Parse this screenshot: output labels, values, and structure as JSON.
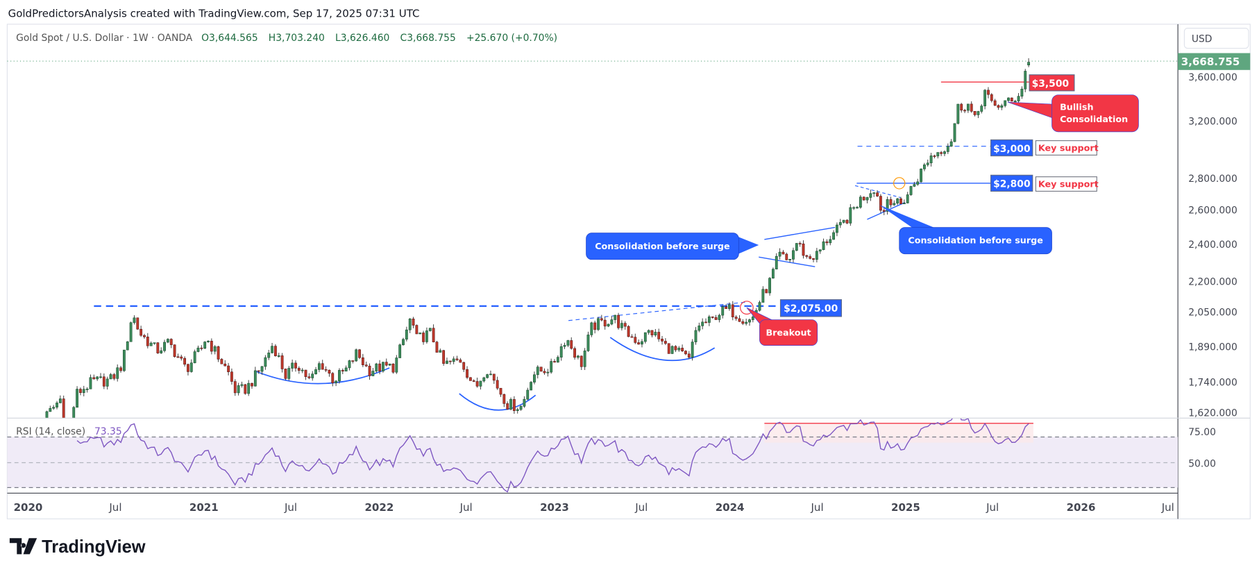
{
  "header": {
    "attribution": "GoldPredictorsAnalysis created with TradingView.com, Sep 17, 2025 07:31 UTC"
  },
  "legend": {
    "symbol": "Gold Spot / U.S. Dollar · 1W · OANDA",
    "open": "O3,644.565",
    "high": "H3,703.240",
    "low": "L3,626.460",
    "close": "C3,668.755",
    "change": "+25.670 (+0.70%)"
  },
  "price_axis": {
    "currency": "USD",
    "scale": "log",
    "ticks": [
      {
        "value": 3600,
        "label": "3,600.000"
      },
      {
        "value": 3200,
        "label": "3,200.000"
      },
      {
        "value": 2800,
        "label": "2,800.000"
      },
      {
        "value": 2600,
        "label": "2,600.000"
      },
      {
        "value": 2400,
        "label": "2,400.000"
      },
      {
        "value": 2200,
        "label": "2,200.000"
      },
      {
        "value": 2050,
        "label": "2,050.000"
      },
      {
        "value": 1890,
        "label": "1,890.000"
      },
      {
        "value": 1740,
        "label": "1,740.000"
      },
      {
        "value": 1620,
        "label": "1,620.000"
      }
    ],
    "last_price": "3,668.755"
  },
  "time_axis": {
    "ticks": [
      {
        "label": "2020",
        "date": "2020-01-01",
        "year": true
      },
      {
        "label": "Jul",
        "date": "2020-07-01"
      },
      {
        "label": "2021",
        "date": "2021-01-01",
        "year": true
      },
      {
        "label": "Jul",
        "date": "2021-07-01"
      },
      {
        "label": "2022",
        "date": "2022-01-01",
        "year": true
      },
      {
        "label": "Jul",
        "date": "2022-07-01"
      },
      {
        "label": "2023",
        "date": "2023-01-01",
        "year": true
      },
      {
        "label": "Jul",
        "date": "2023-07-01"
      },
      {
        "label": "2024",
        "date": "2024-01-01",
        "year": true
      },
      {
        "label": "Jul",
        "date": "2024-07-01"
      },
      {
        "label": "2025",
        "date": "2025-01-01",
        "year": true
      },
      {
        "label": "Jul",
        "date": "2025-07-01"
      },
      {
        "label": "2026",
        "date": "2026-01-01",
        "year": true
      },
      {
        "label": "Jul",
        "date": "2026-07-01"
      }
    ]
  },
  "rsi": {
    "label": "RSI (14, close)",
    "value": "73.35",
    "ticks": [
      {
        "value": 75,
        "label": "75.00"
      },
      {
        "value": 50,
        "label": "50.00"
      }
    ],
    "bands": [
      70,
      50,
      30
    ]
  },
  "annotations": {
    "level_2075": "$2,075.00",
    "breakout": "Breakout",
    "consolidation_1": "Consolidation before surge",
    "consolidation_2": "Consolidation before surge",
    "level_2800": "$2,800",
    "level_3000": "$3,000",
    "key_support_1": "Key support",
    "key_support_2": "Key support",
    "level_3500": "$3,500",
    "bullish_line1": "Bullish",
    "bullish_line2": "Consolidation"
  },
  "branding": {
    "logo": "TradingView"
  },
  "colors": {
    "up": "#3d8c5c",
    "down": "#c0392b",
    "annotation_blue": "#2962ff",
    "annotation_red": "#f23645",
    "rsi_line": "#7e57c2",
    "last_price": "#5fa67f"
  },
  "chart_data": {
    "type": "candlestick",
    "interval": "1W",
    "y_scale": "log",
    "ylim": [
      1580,
      3750
    ],
    "close_anchors": [
      [
        "2020-01-05",
        1560
      ],
      [
        "2020-02-01",
        1590
      ],
      [
        "2020-03-08",
        1670
      ],
      [
        "2020-03-20",
        1500
      ],
      [
        "2020-04-10",
        1690
      ],
      [
        "2020-05-15",
        1740
      ],
      [
        "2020-06-20",
        1745
      ],
      [
        "2020-07-15",
        1810
      ],
      [
        "2020-08-05",
        2040
      ],
      [
        "2020-08-20",
        1950
      ],
      [
        "2020-09-25",
        1870
      ],
      [
        "2020-10-20",
        1905
      ],
      [
        "2020-11-25",
        1790
      ],
      [
        "2020-12-30",
        1890
      ],
      [
        "2021-01-05",
        1930
      ],
      [
        "2021-02-20",
        1780
      ],
      [
        "2021-03-08",
        1700
      ],
      [
        "2021-03-30",
        1710
      ],
      [
        "2021-04-25",
        1780
      ],
      [
        "2021-05-25",
        1900
      ],
      [
        "2021-06-20",
        1765
      ],
      [
        "2021-07-15",
        1815
      ],
      [
        "2021-08-10",
        1740
      ],
      [
        "2021-09-01",
        1820
      ],
      [
        "2021-09-28",
        1745
      ],
      [
        "2021-10-25",
        1790
      ],
      [
        "2021-11-15",
        1860
      ],
      [
        "2021-12-10",
        1785
      ],
      [
        "2022-01-05",
        1800
      ],
      [
        "2022-02-01",
        1800
      ],
      [
        "2022-03-08",
        2020
      ],
      [
        "2022-03-20",
        1920
      ],
      [
        "2022-04-18",
        1950
      ],
      [
        "2022-05-15",
        1810
      ],
      [
        "2022-06-20",
        1830
      ],
      [
        "2022-07-20",
        1710
      ],
      [
        "2022-08-12",
        1800
      ],
      [
        "2022-09-25",
        1650
      ],
      [
        "2022-10-25",
        1640
      ],
      [
        "2022-11-15",
        1770
      ],
      [
        "2022-12-25",
        1800
      ],
      [
        "2023-01-25",
        1930
      ],
      [
        "2023-02-25",
        1810
      ],
      [
        "2023-03-20",
        1980
      ],
      [
        "2023-04-15",
        2000
      ],
      [
        "2023-05-05",
        2020
      ],
      [
        "2023-05-30",
        1950
      ],
      [
        "2023-06-25",
        1910
      ],
      [
        "2023-07-20",
        1960
      ],
      [
        "2023-08-20",
        1890
      ],
      [
        "2023-09-25",
        1850
      ],
      [
        "2023-10-08",
        1830
      ],
      [
        "2023-10-25",
        1985
      ],
      [
        "2023-11-25",
        2005
      ],
      [
        "2023-12-05",
        2040
      ],
      [
        "2023-12-30",
        2060
      ],
      [
        "2024-01-25",
        2020
      ],
      [
        "2024-02-15",
        2005
      ],
      [
        "2024-03-05",
        2110
      ],
      [
        "2024-03-25",
        2200
      ],
      [
        "2024-04-12",
        2340
      ],
      [
        "2024-05-01",
        2300
      ],
      [
        "2024-05-20",
        2410
      ],
      [
        "2024-06-10",
        2320
      ],
      [
        "2024-07-01",
        2340
      ],
      [
        "2024-07-20",
        2420
      ],
      [
        "2024-08-20",
        2500
      ],
      [
        "2024-09-25",
        2650
      ],
      [
        "2024-10-28",
        2740
      ],
      [
        "2024-11-15",
        2570
      ],
      [
        "2024-11-25",
        2680
      ],
      [
        "2024-12-20",
        2620
      ],
      [
        "2025-01-20",
        2770
      ],
      [
        "2025-02-20",
        2940
      ],
      [
        "2025-03-15",
        2990
      ],
      [
        "2025-04-05",
        3050
      ],
      [
        "2025-04-20",
        3300
      ],
      [
        "2025-05-10",
        3330
      ],
      [
        "2025-05-25",
        3200
      ],
      [
        "2025-06-15",
        3430
      ],
      [
        "2025-07-01",
        3300
      ],
      [
        "2025-07-25",
        3340
      ],
      [
        "2025-08-10",
        3340
      ],
      [
        "2025-08-31",
        3450
      ],
      [
        "2025-09-07",
        3590
      ],
      [
        "2025-09-14",
        3668.755
      ]
    ],
    "last_bar": {
      "open": 3644.565,
      "high": 3703.24,
      "low": 3626.46,
      "close": 3668.755
    },
    "levels": [
      2075,
      2800,
      3000,
      3500
    ]
  }
}
